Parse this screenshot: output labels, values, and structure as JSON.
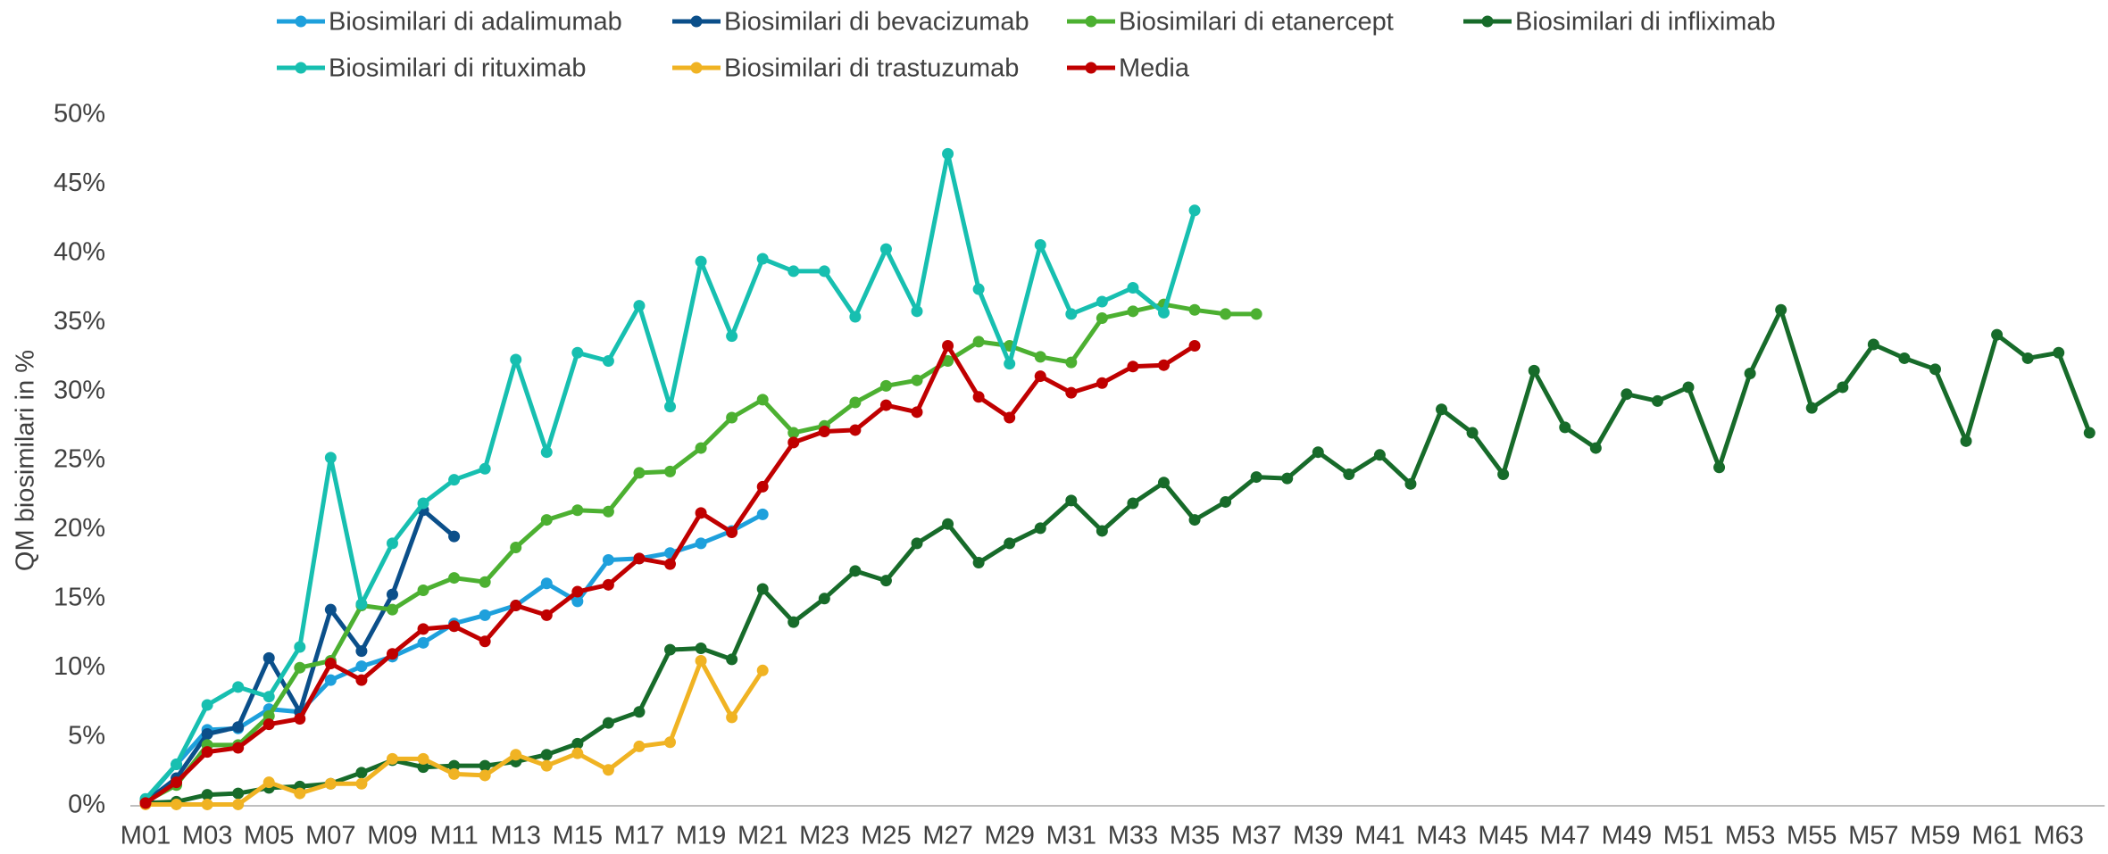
{
  "chart_data": {
    "type": "line",
    "ylabel": "QM biosimilari in %",
    "legend": "top",
    "grid": false,
    "categories": [
      "M01",
      null,
      "M03",
      null,
      "M05",
      null,
      "M07",
      null,
      "M09",
      null,
      "M11",
      null,
      "M13",
      null,
      "M15",
      null,
      "M17",
      null,
      "M19",
      null,
      "M21",
      null,
      "M23",
      null,
      "M25",
      null,
      "M27",
      null,
      "M29",
      null,
      "M31",
      null,
      "M33",
      null,
      "M35",
      null,
      "M37",
      null,
      "M39",
      null,
      "M41",
      null,
      "M43",
      null,
      "M45",
      null,
      "M47",
      null,
      "M49",
      null,
      "M51",
      null,
      "M53",
      null,
      "M55",
      null,
      "M57",
      null,
      "M59",
      null,
      "M61",
      null,
      "M63",
      null
    ],
    "ylim": [
      0,
      50
    ],
    "yticks": [
      {
        "value": 0,
        "label": "0%"
      },
      {
        "value": 5,
        "label": "5%"
      },
      {
        "value": 10,
        "label": "10%"
      },
      {
        "value": 15,
        "label": "15%"
      },
      {
        "value": 20,
        "label": "20%"
      },
      {
        "value": 25,
        "label": "25%"
      },
      {
        "value": 30,
        "label": "30%"
      },
      {
        "value": 35,
        "label": "35%"
      },
      {
        "value": 40,
        "label": "40%"
      },
      {
        "value": 45,
        "label": "45%"
      },
      {
        "value": 50,
        "label": "50%"
      }
    ],
    "series": [
      {
        "name": "Biosimilari di adalimumab",
        "color": "#1ea0dc",
        "values": [
          0.4,
          3,
          5.5,
          5.6,
          7,
          6.8,
          9.1,
          10.1,
          10.8,
          11.8,
          13.2,
          13.8,
          14.5,
          16.1,
          14.8,
          17.8,
          17.9,
          18.3,
          19,
          19.9,
          21.1,
          null,
          null,
          null,
          null,
          null,
          null,
          null,
          null,
          null,
          null,
          null,
          null,
          null,
          null,
          null,
          null,
          null,
          null,
          null,
          null,
          null,
          null,
          null,
          null,
          null,
          null,
          null,
          null,
          null,
          null,
          null,
          null,
          null,
          null,
          null,
          null,
          null,
          null,
          null,
          null,
          null,
          null,
          null
        ]
      },
      {
        "name": "Biosimilari di bevacizumab",
        "color": "#0b4f8a",
        "values": [
          0.3,
          2,
          5.2,
          5.7,
          10.7,
          6.8,
          14.2,
          11.2,
          15.3,
          21.4,
          19.5,
          null,
          null,
          null,
          null,
          null,
          null,
          null,
          null,
          null,
          null,
          null,
          null,
          null,
          null,
          null,
          null,
          null,
          null,
          null,
          null,
          null,
          null,
          null,
          null,
          null,
          null,
          null,
          null,
          null,
          null,
          null,
          null,
          null,
          null,
          null,
          null,
          null,
          null,
          null,
          null,
          null,
          null,
          null,
          null,
          null,
          null,
          null,
          null,
          null,
          null,
          null,
          null,
          null
        ]
      },
      {
        "name": "Biosimilari di etanercept",
        "color": "#4cb031",
        "values": [
          0.3,
          1.5,
          4.4,
          4.4,
          6.5,
          10,
          10.5,
          14.5,
          14.2,
          15.6,
          16.5,
          16.2,
          18.7,
          20.7,
          21.4,
          21.3,
          24.1,
          24.2,
          25.9,
          28.1,
          29.4,
          27,
          27.5,
          29.2,
          30.4,
          30.8,
          32.2,
          33.6,
          33.3,
          32.5,
          32.1,
          35.3,
          35.8,
          36.3,
          35.9,
          35.6,
          35.6,
          null,
          null,
          null,
          null,
          null,
          null,
          null,
          null,
          null,
          null,
          null,
          null,
          null,
          null,
          null,
          null,
          null,
          null,
          null,
          null,
          null,
          null,
          null,
          null,
          null,
          null,
          null
        ]
      },
      {
        "name": "Biosimilari di infliximab",
        "color": "#176b2a",
        "values": [
          0.2,
          0.3,
          0.8,
          0.9,
          1.3,
          1.4,
          1.6,
          2.4,
          3.3,
          2.8,
          2.9,
          2.9,
          3.2,
          3.7,
          4.5,
          6,
          6.8,
          11.3,
          11.4,
          10.6,
          15.7,
          13.3,
          15,
          17,
          16.3,
          19,
          20.4,
          17.6,
          19,
          20.1,
          22.1,
          19.9,
          21.9,
          23.4,
          20.7,
          22,
          23.8,
          23.7,
          25.6,
          24,
          25.4,
          23.3,
          28.7,
          27,
          24,
          31.5,
          27.4,
          25.9,
          29.8,
          29.3,
          30.3,
          24.5,
          31.3,
          35.9,
          28.8,
          30.3,
          33.4,
          32.4,
          31.6,
          26.4,
          34.1,
          32.4,
          32.8,
          27
        ]
      },
      {
        "name": "Biosimilari di rituximab",
        "color": "#17bfb0",
        "values": [
          0.5,
          3,
          7.3,
          8.6,
          7.9,
          11.5,
          25.2,
          14.6,
          19,
          21.9,
          23.6,
          24.4,
          32.3,
          25.6,
          32.8,
          32.2,
          36.2,
          28.9,
          39.4,
          34,
          39.6,
          38.7,
          38.7,
          35.4,
          40.3,
          35.8,
          47.2,
          37.4,
          32,
          40.6,
          35.6,
          36.5,
          37.5,
          35.7,
          43.1,
          null,
          null,
          null,
          null,
          null,
          null,
          null,
          null,
          null,
          null,
          null,
          null,
          null,
          null,
          null,
          null,
          null,
          null,
          null,
          null,
          null,
          null,
          null,
          null,
          null,
          null,
          null,
          null,
          null
        ]
      },
      {
        "name": "Biosimilari di trastuzumab",
        "color": "#f0b323",
        "values": [
          0.1,
          0.1,
          0.1,
          0.1,
          1.7,
          0.9,
          1.6,
          1.6,
          3.4,
          3.4,
          2.3,
          2.2,
          3.7,
          2.9,
          3.8,
          2.6,
          4.3,
          4.6,
          10.5,
          6.4,
          9.8,
          null,
          null,
          null,
          null,
          null,
          null,
          null,
          null,
          null,
          null,
          null,
          null,
          null,
          null,
          null,
          null,
          null,
          null,
          null,
          null,
          null,
          null,
          null,
          null,
          null,
          null,
          null,
          null,
          null,
          null,
          null,
          null,
          null,
          null,
          null,
          null,
          null,
          null,
          null,
          null,
          null,
          null,
          null
        ]
      },
      {
        "name": "Media",
        "color": "#c00000",
        "values": [
          0.2,
          1.7,
          3.9,
          4.2,
          5.9,
          6.3,
          10.3,
          9.1,
          11,
          12.8,
          13,
          11.9,
          14.5,
          13.8,
          15.5,
          16,
          17.9,
          17.5,
          21.2,
          19.8,
          23.1,
          26.3,
          27.1,
          27.2,
          29,
          28.5,
          33.3,
          29.6,
          28.1,
          31.1,
          29.9,
          30.6,
          31.8,
          31.9,
          33.3,
          null,
          null,
          null,
          null,
          null,
          null,
          null,
          null,
          null,
          null,
          null,
          null,
          null,
          null,
          null,
          null,
          null,
          null,
          null,
          null,
          null,
          null,
          null,
          null,
          null,
          null,
          null,
          null,
          null
        ]
      }
    ]
  }
}
